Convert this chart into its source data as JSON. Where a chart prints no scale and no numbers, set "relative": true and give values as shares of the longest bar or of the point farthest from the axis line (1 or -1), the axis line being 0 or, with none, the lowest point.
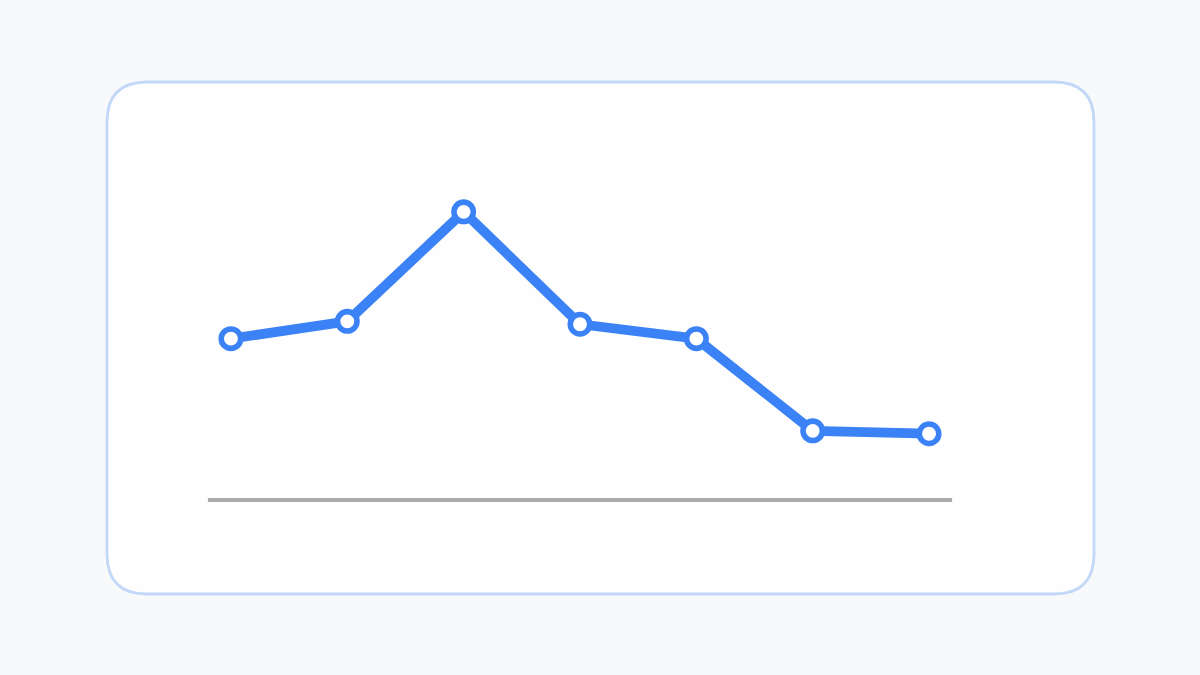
{
  "chart_data": {
    "type": "line",
    "relative": true,
    "categories": [
      null,
      null,
      null,
      null,
      null,
      null,
      null
    ],
    "series": [
      {
        "color": "#3b82f6",
        "values": [
          0.56,
          0.62,
          1,
          0.61,
          0.56,
          0.24,
          0.23
        ]
      }
    ],
    "marker": "circle",
    "line_style": "solid",
    "grid": false,
    "legend": false
  }
}
